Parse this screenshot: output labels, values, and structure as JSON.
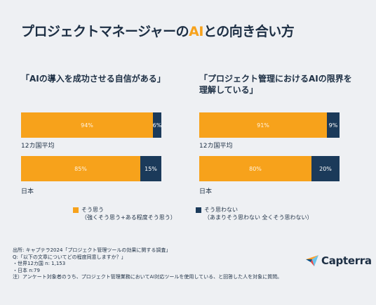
{
  "title": {
    "before": "プロジェクトマネージャーの",
    "accent": "AI",
    "after": "との向き合い方"
  },
  "legend": {
    "agree": {
      "label": "そう思う",
      "sub": "（強くそう思う+ある程度そう思う）",
      "color": "#f7a21b"
    },
    "disagree": {
      "label": "そう思わない",
      "sub": "（あまりそう思わない 全くそう思わない）",
      "color": "#1b3a5a"
    }
  },
  "chart_data": [
    {
      "type": "bar",
      "stacked": true,
      "orientation": "horizontal",
      "title": "「AIの導入を成功させる自信がある」",
      "categories": [
        "12カ国平均",
        "日本"
      ],
      "series": [
        {
          "name": "そう思う",
          "values": [
            94,
            85
          ],
          "labels": [
            "94%",
            "85%"
          ]
        },
        {
          "name": "そう思わない",
          "values": [
            6,
            15
          ],
          "labels": [
            "6%",
            "15%"
          ]
        }
      ]
    },
    {
      "type": "bar",
      "stacked": true,
      "orientation": "horizontal",
      "title": "「プロジェクト管理におけるAIの限界を理解している」",
      "categories": [
        "12カ国平均",
        "日本"
      ],
      "series": [
        {
          "name": "そう思う",
          "values": [
            91,
            80
          ],
          "labels": [
            "91%",
            "80%"
          ]
        },
        {
          "name": "そう思わない",
          "values": [
            9,
            20
          ],
          "labels": [
            "9%",
            "20%"
          ]
        }
      ]
    }
  ],
  "source": {
    "lines": [
      "出所: キャプテラ2024「プロジェクト管理ツールの効果に関する調査」",
      "Q:「以下の文章についてどの程度同意しますか？」",
      "・世界12カ国 n: 1,153",
      "・日本 n:79",
      "注）アンケート対象者のうち、プロジェクト管理業務においてAI対応ツールを使用している、と回答した人を対象に質問。"
    ]
  },
  "logo": {
    "text": "Capterra",
    "icon": "capterra-arrow-icon"
  }
}
